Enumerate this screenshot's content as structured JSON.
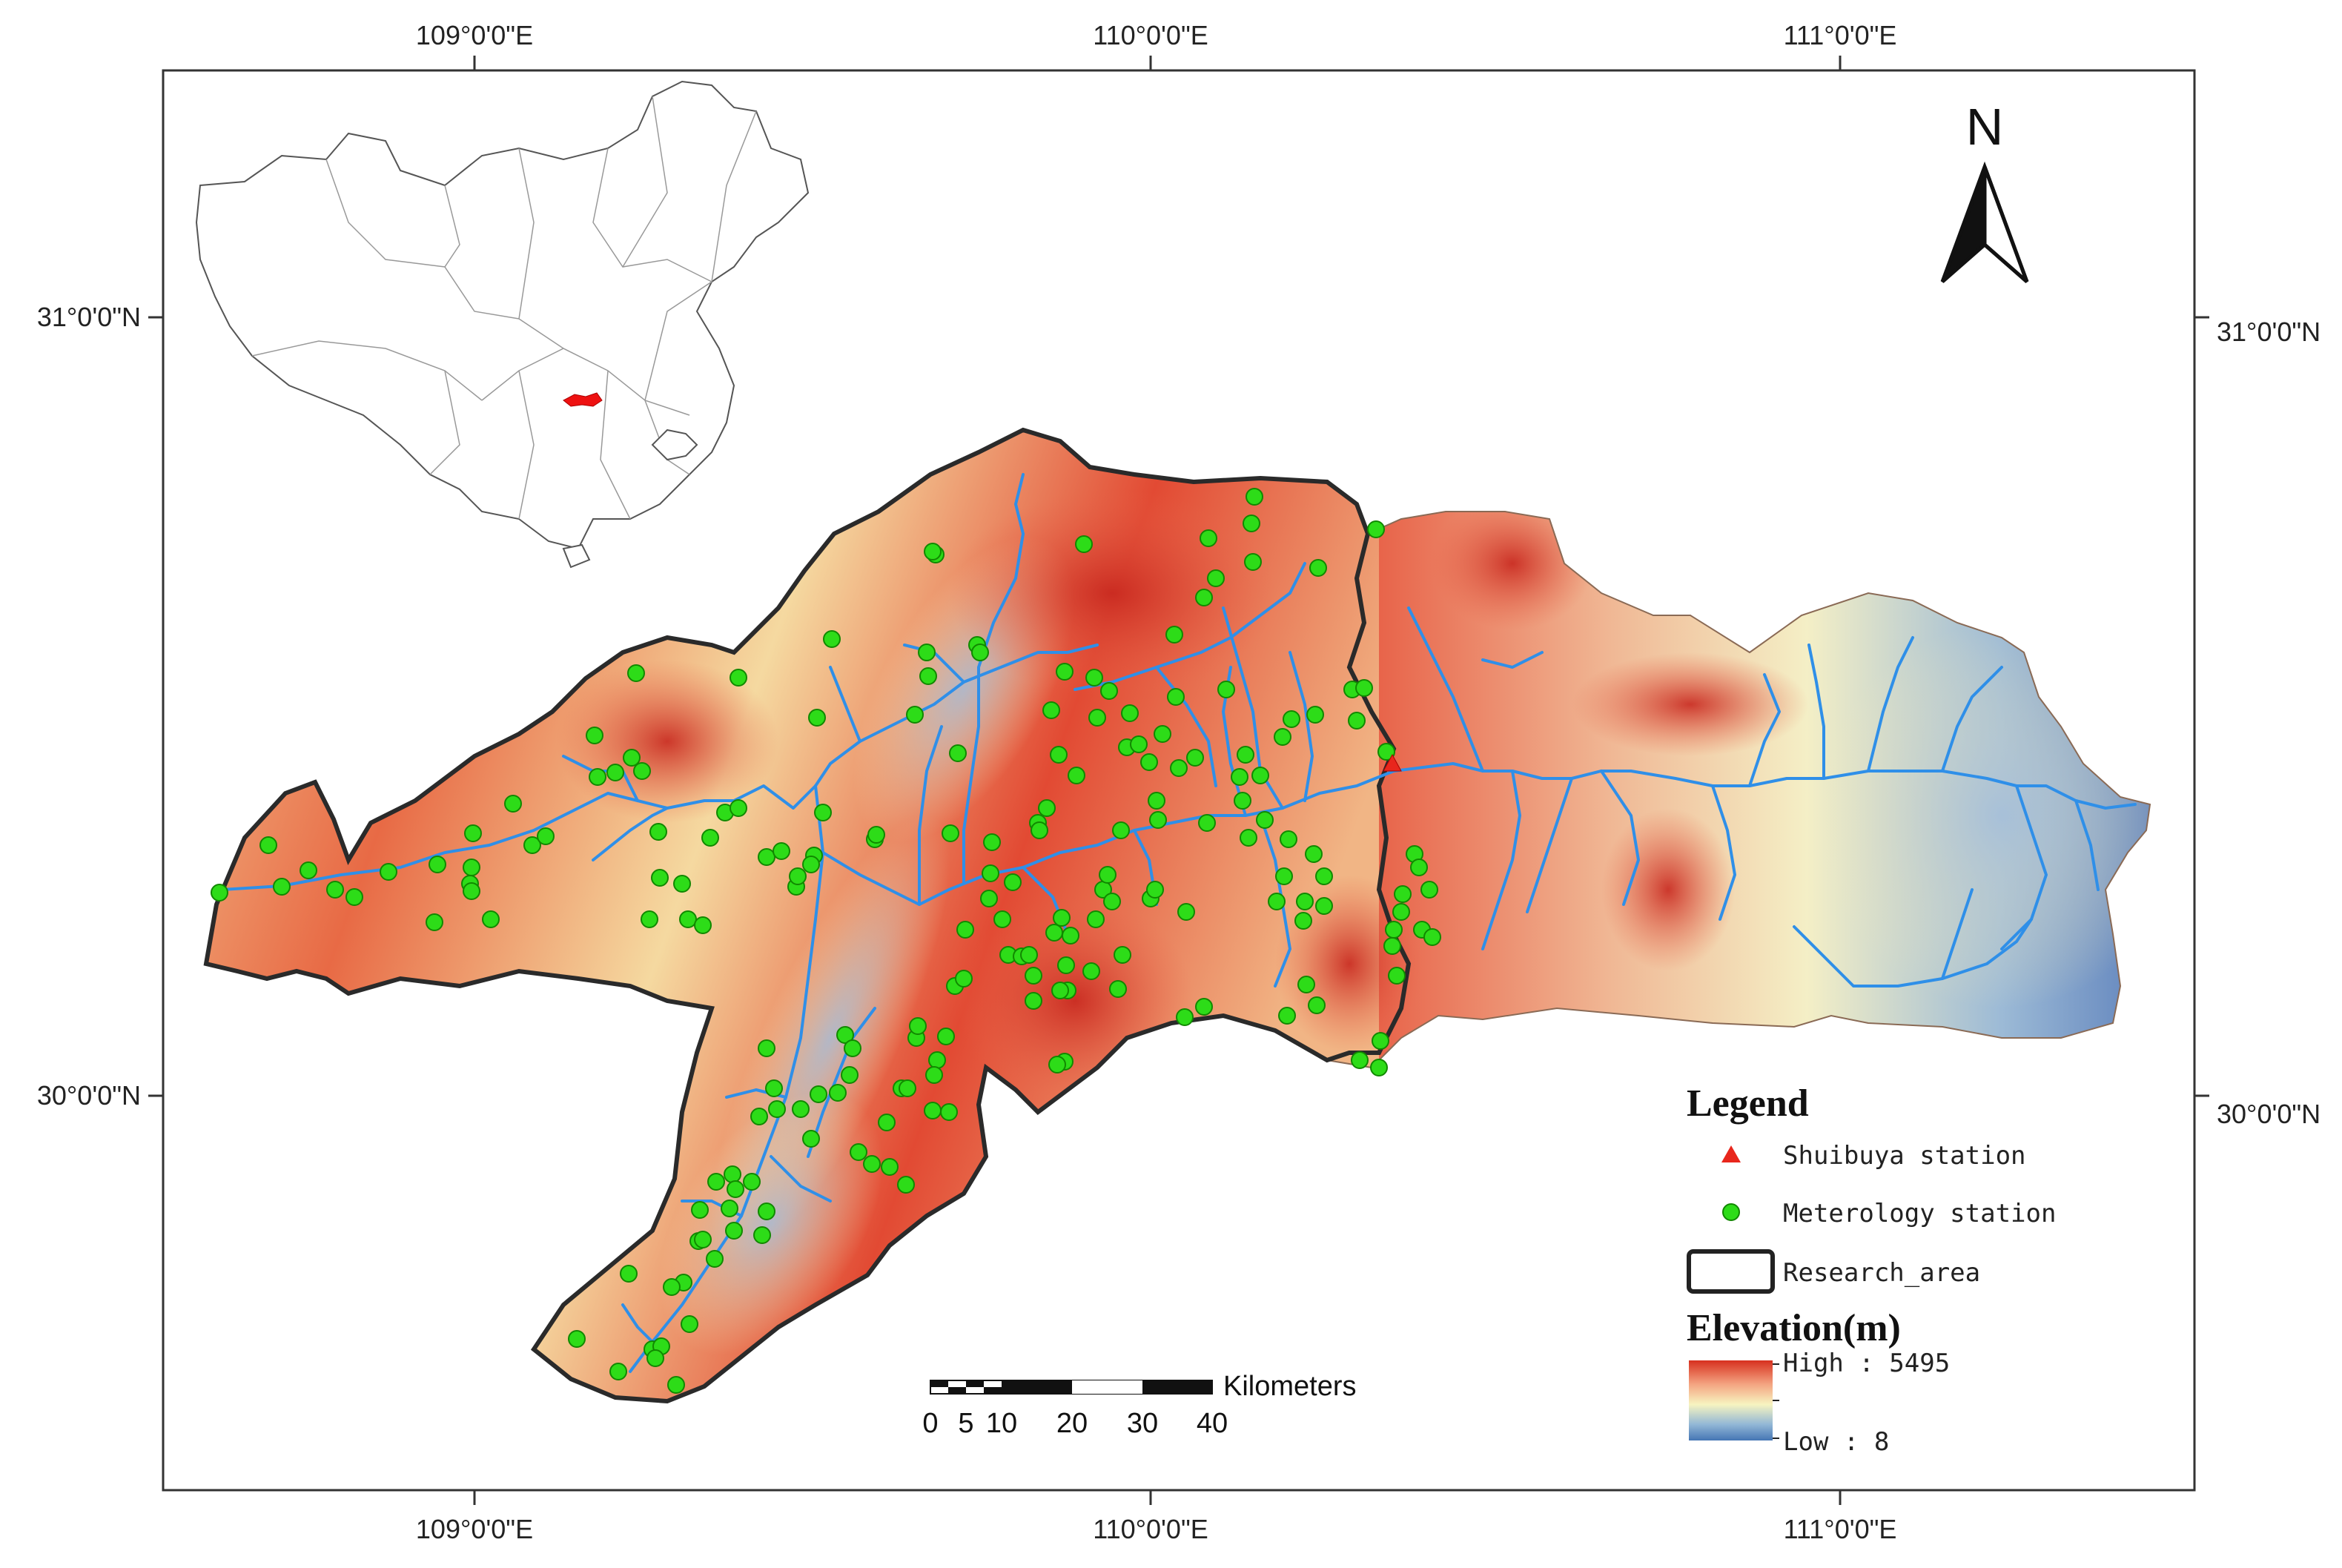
{
  "coordinates": {
    "top": [
      "109°0'0\"E",
      "110°0'0\"E",
      "111°0'0\"E"
    ],
    "bottom": [
      "109°0'0\"E",
      "110°0'0\"E",
      "111°0'0\"E"
    ],
    "left": [
      "31°0'0\"N",
      "30°0'0\"N"
    ],
    "right": [
      "31°0'0\"N",
      "30°0'0\"N"
    ]
  },
  "north_arrow": {
    "label": "N"
  },
  "legend": {
    "title": "Legend",
    "items": [
      {
        "label": "Shuibuya station",
        "symbol": "red-triangle",
        "color": "#e8261c"
      },
      {
        "label": "Meterology station",
        "symbol": "green-circle",
        "color": "#2ddc18"
      },
      {
        "label": "Research_area",
        "symbol": "black-outline-box",
        "color": "#222222"
      }
    ],
    "elevation_title": "Elevation(m)",
    "high_label": "High : 5495",
    "low_label": "Low : 8",
    "ramp_colors": [
      "#d7301f",
      "#f4a582",
      "#f7f4c0",
      "#92b7d6",
      "#4575b4"
    ]
  },
  "scale_bar": {
    "unit": "Kilometers",
    "ticks": [
      "0",
      "5",
      "10",
      "20",
      "30",
      "40"
    ]
  },
  "colors": {
    "high_elevation": "#d73027",
    "mid_elevation": "#f6e7b0",
    "low_elevation": "#4a74b4",
    "river": "#2f8fe8",
    "station": "#2ddc18",
    "inset_highlight": "#ee1111"
  }
}
